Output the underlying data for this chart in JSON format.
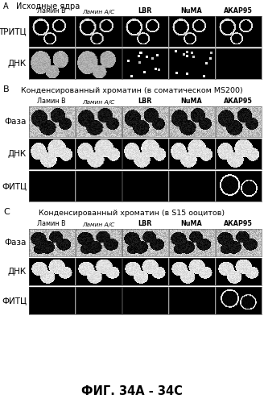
{
  "title": "ФИГ. 34А - 34С",
  "section_A_label": "А   Исходные ядра",
  "section_B_label": "В",
  "section_C_label": "С",
  "section_B_title": "Конденсированный хроматин (в соматическом MS200)",
  "section_C_title": "Конденсированный хроматин (в S15 ооцитов)",
  "col_headers": [
    "Ламин B",
    "Ламин А/С",
    "LBR",
    "NuMA",
    "АКАР95"
  ],
  "col_headers_italic": [
    false,
    true,
    false,
    false,
    false
  ],
  "col_headers_bold": [
    false,
    false,
    true,
    true,
    true
  ],
  "row_A_labels": [
    "ТРИТЦ",
    "ДНК"
  ],
  "row_BC_labels": [
    "Фаза",
    "ДНК",
    "ФИТЦ"
  ],
  "bg_color": "#ffffff"
}
